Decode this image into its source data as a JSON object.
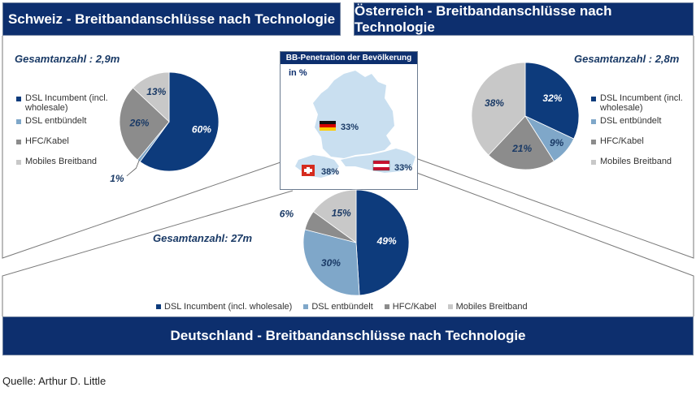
{
  "colors": {
    "dsl_incumbent": "#0d3b7c",
    "dsl_entbuendelt": "#7fa7c9",
    "hfc_kabel": "#8c8c8c",
    "mobiles": "#c8c8c8",
    "header": "#0d2f6e"
  },
  "headers": {
    "schweiz": "Schweiz - Breitbandanschlüsse nach Technologie",
    "oesterreich": "Österreich - Breitbandanschlüsse nach Technologie",
    "deutschland": "Deutschland - Breitbandanschlüsse nach Technologie"
  },
  "map": {
    "title": "BB-Penetration der Bevölkerung",
    "unit": "in %",
    "de_pct": "33%",
    "ch_pct": "38%",
    "at_pct": "33%"
  },
  "source": "Quelle: Arthur D. Little",
  "chart_data": [
    {
      "type": "pie",
      "title": "Schweiz - Breitbandanschlüsse nach Technologie",
      "total_label": "Gesamtanzahl : 2,9m",
      "categories": [
        "DSL Incumbent (incl. wholesale)",
        "DSL entbündelt",
        "HFC/Kabel",
        "Mobiles Breitband"
      ],
      "values": [
        60,
        1,
        26,
        13
      ],
      "value_labels": [
        "60%",
        "1%",
        "26%",
        "13%"
      ],
      "legend_position": "left"
    },
    {
      "type": "pie",
      "title": "Österreich - Breitbandanschlüsse nach Technologie",
      "total_label": "Gesamtanzahl : 2,8m",
      "categories": [
        "DSL Incumbent (incl. wholesale)",
        "DSL entbündelt",
        "HFC/Kabel",
        "Mobiles Breitband"
      ],
      "values": [
        32,
        9,
        21,
        38
      ],
      "value_labels": [
        "32%",
        "9%",
        "21%",
        "38%"
      ],
      "legend_position": "right"
    },
    {
      "type": "pie",
      "title": "Deutschland - Breitbandanschlüsse nach Technologie",
      "total_label": "Gesamtanzahl: 27m",
      "categories": [
        "DSL Incumbent (incl. wholesale)",
        "DSL entbündelt",
        "HFC/Kabel",
        "Mobiles Breitband"
      ],
      "values": [
        49,
        30,
        6,
        15
      ],
      "value_labels": [
        "49%",
        "30%",
        "6%",
        "15%"
      ],
      "legend_position": "bottom"
    }
  ],
  "legend_ch": [
    "DSL Incumbent (incl. wholesale)",
    "DSL entbündelt",
    "HFC/Kabel",
    "Mobiles Breitband"
  ],
  "legend_at": [
    "DSL Incumbent (incl. wholesale)",
    "DSL entbündelt",
    "HFC/Kabel",
    "Mobiles Breitband"
  ],
  "legend_de": [
    "DSL Incumbent (incl. wholesale)",
    "DSL entbündelt",
    "HFC/Kabel",
    "Mobiles Breitband"
  ]
}
